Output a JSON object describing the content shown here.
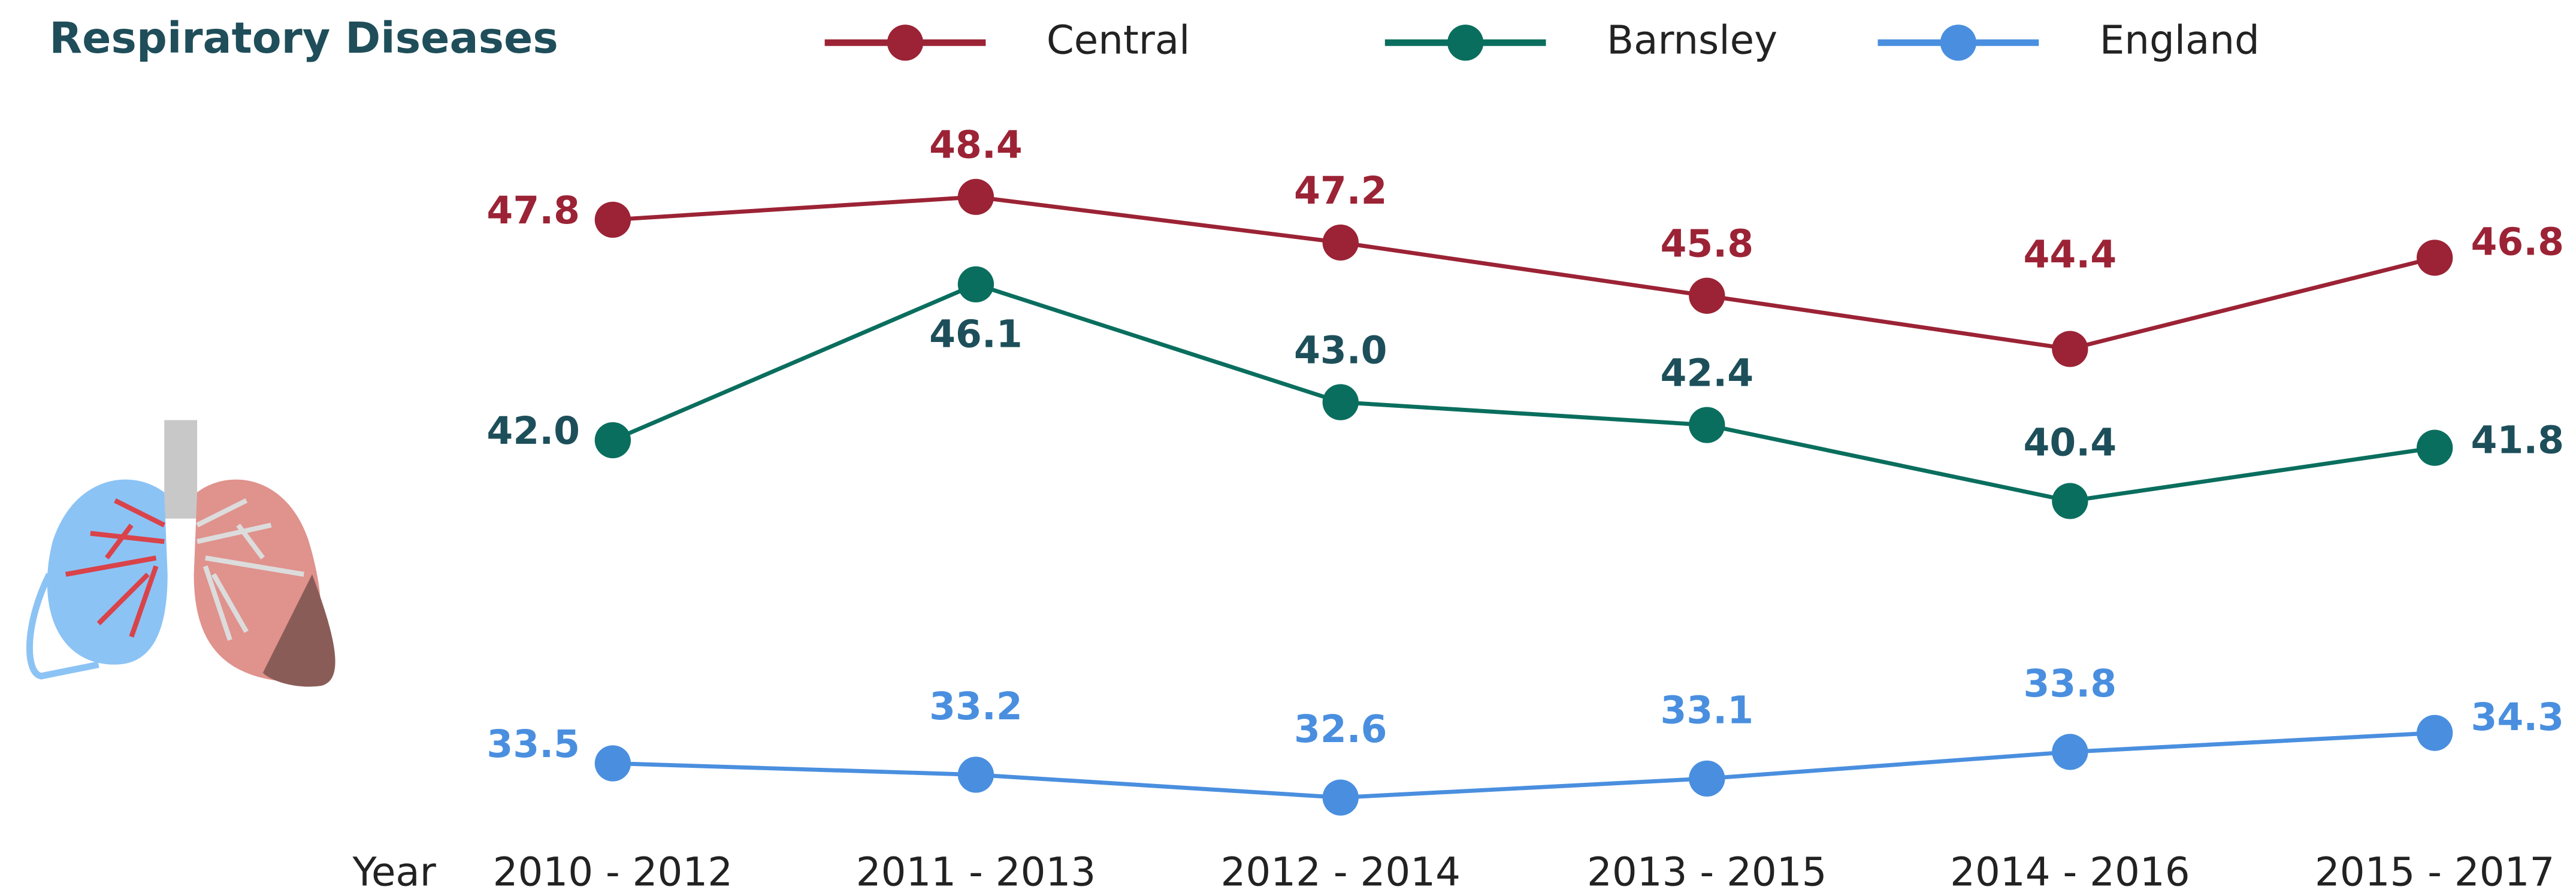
{
  "chart_data": {
    "type": "line",
    "title": "Respiratory Diseases",
    "x_label": "Year",
    "categories": [
      "2010 - 2012",
      "2011 - 2013",
      "2012 - 2014",
      "2013 - 2015",
      "2014 - 2016",
      "2015 - 2017"
    ],
    "series": [
      {
        "name": "Central",
        "color": "#9b2335",
        "label_color": "#9b2335",
        "values": [
          47.8,
          48.4,
          47.2,
          45.8,
          44.4,
          46.8
        ],
        "value_labels": [
          "47.8",
          "48.4",
          "47.2",
          "45.8",
          "44.4",
          "46.8"
        ]
      },
      {
        "name": "Barnsley",
        "color": "#0a6e5e",
        "label_color": "#1d4f5a",
        "values": [
          42.0,
          46.1,
          43.0,
          42.4,
          40.4,
          41.8
        ],
        "value_labels": [
          "42.0",
          "46.1",
          "43.0",
          "42.4",
          "40.4",
          "41.8"
        ]
      },
      {
        "name": "England",
        "color": "#4a8fdf",
        "label_color": "#4a8fdf",
        "values": [
          33.5,
          33.2,
          32.6,
          33.1,
          33.8,
          34.3
        ],
        "value_labels": [
          "33.5",
          "33.2",
          "32.6",
          "33.1",
          "33.8",
          "34.3"
        ]
      }
    ]
  }
}
